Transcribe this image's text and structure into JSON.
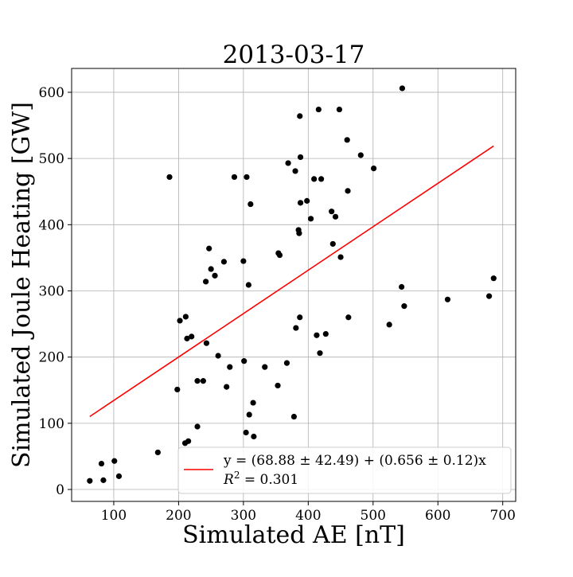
{
  "chart_data": {
    "type": "scatter",
    "title": "2013-03-17",
    "xlabel": "Simulated AE [nT]",
    "ylabel": "Simulated Joule Heating [GW]",
    "xlim": [
      35,
      720
    ],
    "ylim": [
      -18,
      636
    ],
    "x_ticks": [
      100,
      200,
      300,
      400,
      500,
      600,
      700
    ],
    "y_ticks": [
      0,
      100,
      200,
      300,
      400,
      500,
      600
    ],
    "grid": true,
    "legend_position": "lower-right",
    "colors": {
      "points": "#000000",
      "fit_line": "#ff0000",
      "grid": "#b0b0b0"
    },
    "series": [
      {
        "type": "scatter",
        "points": [
          [
            63,
            13
          ],
          [
            81,
            39
          ],
          [
            84,
            14
          ],
          [
            101,
            43
          ],
          [
            108,
            20
          ],
          [
            168,
            56
          ],
          [
            186,
            472
          ],
          [
            198,
            151
          ],
          [
            202,
            255
          ],
          [
            210,
            70
          ],
          [
            211,
            261
          ],
          [
            213,
            228
          ],
          [
            215,
            73
          ],
          [
            220,
            231
          ],
          [
            229,
            164
          ],
          [
            229,
            95
          ],
          [
            238,
            164
          ],
          [
            242,
            314
          ],
          [
            243,
            221
          ],
          [
            247,
            364
          ],
          [
            250,
            333
          ],
          [
            256,
            323
          ],
          [
            261,
            202
          ],
          [
            270,
            344
          ],
          [
            274,
            155
          ],
          [
            279,
            185
          ],
          [
            286,
            472
          ],
          [
            300,
            345
          ],
          [
            301,
            194
          ],
          [
            304,
            86
          ],
          [
            305,
            472
          ],
          [
            308,
            309
          ],
          [
            309,
            113
          ],
          [
            311,
            431
          ],
          [
            315,
            131
          ],
          [
            316,
            80
          ],
          [
            333,
            185
          ],
          [
            353,
            157
          ],
          [
            354,
            357
          ],
          [
            356,
            354
          ],
          [
            367,
            191
          ],
          [
            369,
            493
          ],
          [
            378,
            110
          ],
          [
            380,
            481
          ],
          [
            381,
            244
          ],
          [
            385,
            392
          ],
          [
            386,
            387
          ],
          [
            387,
            564
          ],
          [
            387,
            260
          ],
          [
            388,
            433
          ],
          [
            388,
            502
          ],
          [
            398,
            436
          ],
          [
            404,
            409
          ],
          [
            409,
            469
          ],
          [
            413,
            233
          ],
          [
            416,
            574
          ],
          [
            418,
            206
          ],
          [
            420,
            469
          ],
          [
            427,
            235
          ],
          [
            436,
            420
          ],
          [
            438,
            371
          ],
          [
            442,
            412
          ],
          [
            448,
            574
          ],
          [
            450,
            351
          ],
          [
            460,
            528
          ],
          [
            461,
            451
          ],
          [
            462,
            260
          ],
          [
            481,
            505
          ],
          [
            501,
            485
          ],
          [
            525,
            249
          ],
          [
            544,
            306
          ],
          [
            545,
            606
          ],
          [
            548,
            277
          ],
          [
            615,
            287
          ],
          [
            679,
            292
          ],
          [
            686,
            319
          ]
        ]
      },
      {
        "type": "line",
        "x": [
          63,
          686
        ],
        "y": [
          110.2,
          518.9
        ]
      }
    ],
    "legend": {
      "line1": "y = (68.88 ± 42.49) + (0.656 ± 0.12)x",
      "line2_prefix": "R",
      "line2_sup": "2",
      "line2_suffix": " = 0.301"
    }
  }
}
